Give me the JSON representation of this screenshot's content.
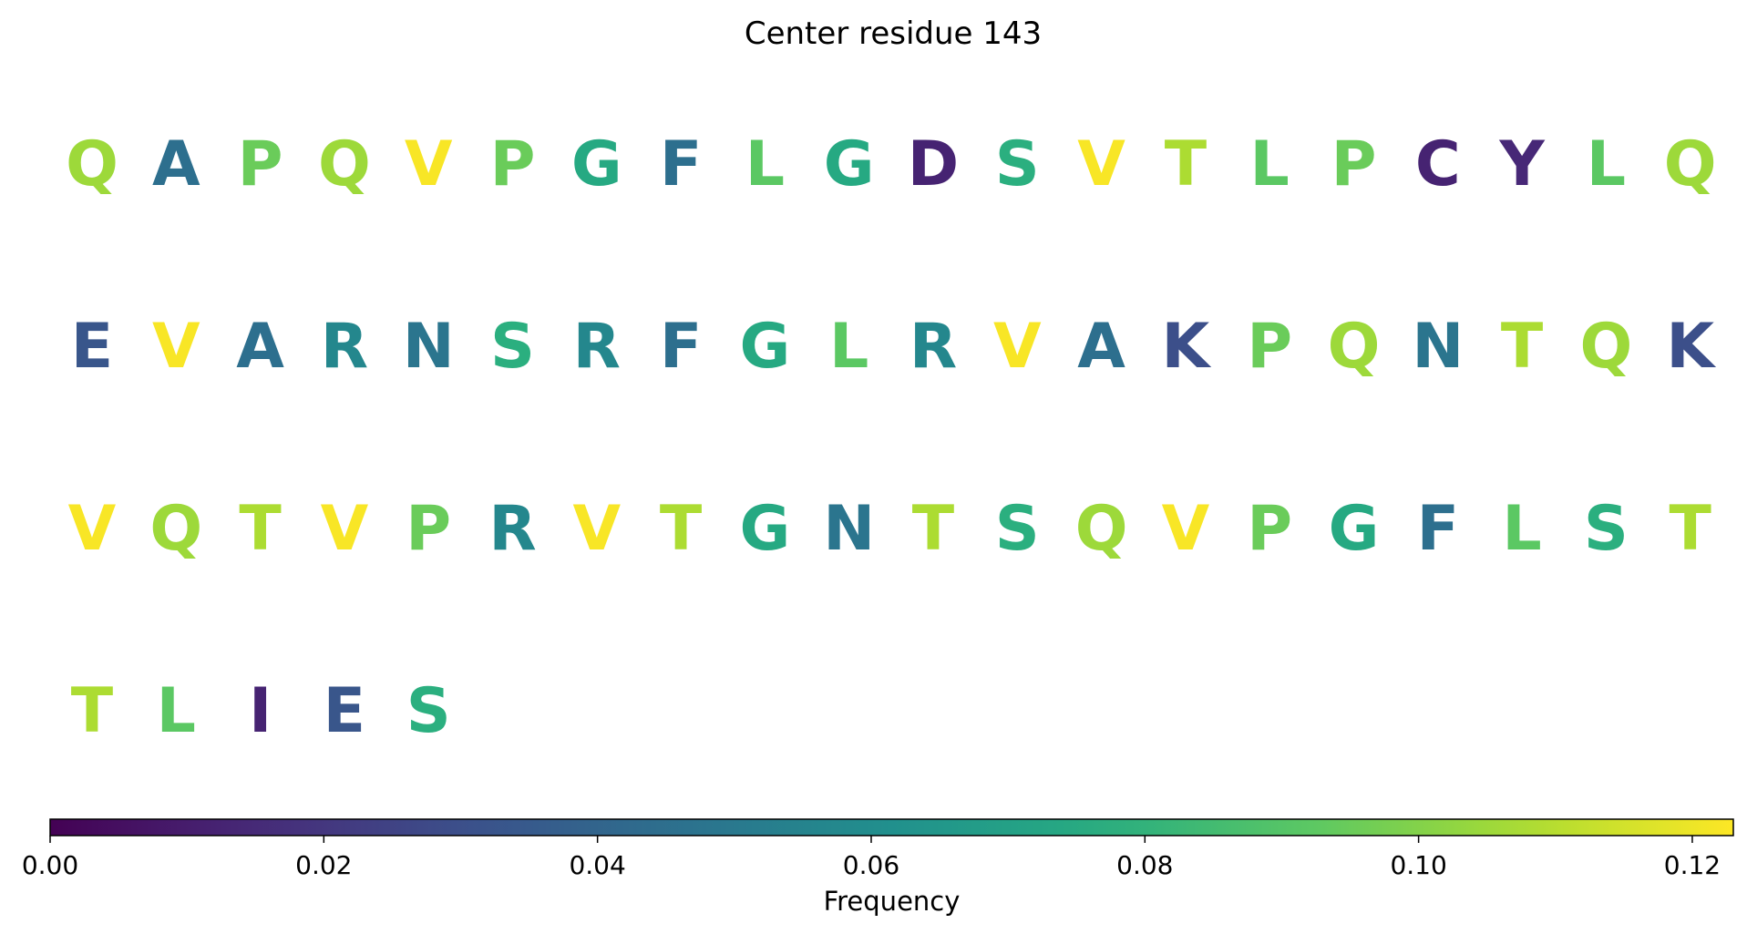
{
  "chart_data": {
    "type": "heatmap",
    "title": "Center residue 143",
    "colormap": "viridis",
    "color_scale": {
      "min": 0.0,
      "max": 0.123
    },
    "residues": [
      {
        "letter": "Q",
        "frequency": 0.105
      },
      {
        "letter": "A",
        "frequency": 0.045
      },
      {
        "letter": "P",
        "frequency": 0.095
      },
      {
        "letter": "Q",
        "frequency": 0.105
      },
      {
        "letter": "V",
        "frequency": 0.122
      },
      {
        "letter": "P",
        "frequency": 0.095
      },
      {
        "letter": "G",
        "frequency": 0.075
      },
      {
        "letter": "F",
        "frequency": 0.045
      },
      {
        "letter": "L",
        "frequency": 0.092
      },
      {
        "letter": "G",
        "frequency": 0.075
      },
      {
        "letter": "D",
        "frequency": 0.012
      },
      {
        "letter": "S",
        "frequency": 0.078
      },
      {
        "letter": "V",
        "frequency": 0.122
      },
      {
        "letter": "T",
        "frequency": 0.108
      },
      {
        "letter": "L",
        "frequency": 0.092
      },
      {
        "letter": "P",
        "frequency": 0.095
      },
      {
        "letter": "C",
        "frequency": 0.012
      },
      {
        "letter": "Y",
        "frequency": 0.014
      },
      {
        "letter": "L",
        "frequency": 0.092
      },
      {
        "letter": "Q",
        "frequency": 0.105
      },
      {
        "letter": "E",
        "frequency": 0.033
      },
      {
        "letter": "V",
        "frequency": 0.122
      },
      {
        "letter": "A",
        "frequency": 0.045
      },
      {
        "letter": "R",
        "frequency": 0.057
      },
      {
        "letter": "N",
        "frequency": 0.048
      },
      {
        "letter": "S",
        "frequency": 0.078
      },
      {
        "letter": "R",
        "frequency": 0.057
      },
      {
        "letter": "F",
        "frequency": 0.045
      },
      {
        "letter": "G",
        "frequency": 0.075
      },
      {
        "letter": "L",
        "frequency": 0.092
      },
      {
        "letter": "R",
        "frequency": 0.057
      },
      {
        "letter": "V",
        "frequency": 0.122
      },
      {
        "letter": "A",
        "frequency": 0.045
      },
      {
        "letter": "K",
        "frequency": 0.03
      },
      {
        "letter": "P",
        "frequency": 0.095
      },
      {
        "letter": "Q",
        "frequency": 0.105
      },
      {
        "letter": "N",
        "frequency": 0.048
      },
      {
        "letter": "T",
        "frequency": 0.108
      },
      {
        "letter": "Q",
        "frequency": 0.105
      },
      {
        "letter": "K",
        "frequency": 0.03
      },
      {
        "letter": "V",
        "frequency": 0.122
      },
      {
        "letter": "Q",
        "frequency": 0.105
      },
      {
        "letter": "T",
        "frequency": 0.108
      },
      {
        "letter": "V",
        "frequency": 0.122
      },
      {
        "letter": "P",
        "frequency": 0.095
      },
      {
        "letter": "R",
        "frequency": 0.057
      },
      {
        "letter": "V",
        "frequency": 0.122
      },
      {
        "letter": "T",
        "frequency": 0.108
      },
      {
        "letter": "G",
        "frequency": 0.075
      },
      {
        "letter": "N",
        "frequency": 0.048
      },
      {
        "letter": "T",
        "frequency": 0.108
      },
      {
        "letter": "S",
        "frequency": 0.078
      },
      {
        "letter": "Q",
        "frequency": 0.105
      },
      {
        "letter": "V",
        "frequency": 0.122
      },
      {
        "letter": "P",
        "frequency": 0.095
      },
      {
        "letter": "G",
        "frequency": 0.075
      },
      {
        "letter": "F",
        "frequency": 0.045
      },
      {
        "letter": "L",
        "frequency": 0.092
      },
      {
        "letter": "S",
        "frequency": 0.078
      },
      {
        "letter": "T",
        "frequency": 0.108
      },
      {
        "letter": "T",
        "frequency": 0.108
      },
      {
        "letter": "L",
        "frequency": 0.092
      },
      {
        "letter": "I",
        "frequency": 0.012
      },
      {
        "letter": "E",
        "frequency": 0.033
      },
      {
        "letter": "S",
        "frequency": 0.078
      }
    ],
    "letters_per_row": 20,
    "colorbar": {
      "label": "Frequency",
      "ticks": [
        "0.00",
        "0.02",
        "0.04",
        "0.06",
        "0.08",
        "0.10",
        "0.12"
      ],
      "tick_values": [
        0.0,
        0.02,
        0.04,
        0.06,
        0.08,
        0.1,
        0.12
      ],
      "orientation": "horizontal"
    },
    "grid": false
  }
}
